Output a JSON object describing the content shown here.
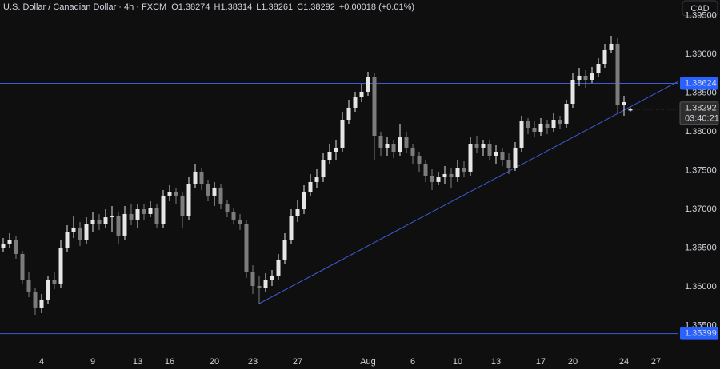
{
  "chart_data": {
    "type": "candlestick",
    "title": "U.S. Dollar / Canadian Dollar · 4h · FXCM",
    "ohlc_legend": [
      {
        "label": "O",
        "value": "1.38274"
      },
      {
        "label": "H",
        "value": "1.38314"
      },
      {
        "label": "L",
        "value": "1.38261"
      },
      {
        "label": "C",
        "value": "1.38292"
      }
    ],
    "change": "+0.00018 (+0.01%)",
    "currency": "CAD",
    "up_color": "#e6e6e6",
    "down_color": "#7c7c7c",
    "line_color": "#3d5bd6",
    "label_color": "#2962ff",
    "ylim": [
      1.35168,
      1.397
    ],
    "yticks": [
      {
        "value": 1.395,
        "label": "1.39500"
      },
      {
        "value": 1.39,
        "label": "1.39000"
      },
      {
        "value": 1.385,
        "label": "1.38500"
      },
      {
        "value": 1.38,
        "label": "1.38000"
      },
      {
        "value": 1.375,
        "label": "1.37500"
      },
      {
        "value": 1.37,
        "label": "1.37000"
      },
      {
        "value": 1.365,
        "label": "1.36500"
      },
      {
        "value": 1.36,
        "label": "1.36000"
      },
      {
        "value": 1.355,
        "label": "1.35500"
      }
    ],
    "price_lines": [
      {
        "value": 1.38624,
        "label": "1.38624"
      },
      {
        "value": 1.35399,
        "label": "1.35399"
      }
    ],
    "last_price": {
      "value": 1.38292,
      "label": "1.38292"
    },
    "countdown": "03:40:21",
    "trendline": [
      [
        40,
        1.35786
      ],
      [
        96,
        1.38235
      ]
    ],
    "categories": [
      null,
      null,
      null,
      null,
      null,
      null,
      "4",
      null,
      null,
      null,
      null,
      null,
      null,
      null,
      "9",
      null,
      null,
      null,
      null,
      null,
      null,
      "13",
      null,
      null,
      null,
      null,
      "16",
      null,
      null,
      null,
      null,
      null,
      null,
      "20",
      null,
      null,
      null,
      null,
      null,
      "23",
      null,
      null,
      null,
      null,
      null,
      null,
      "27",
      null,
      null,
      null,
      null,
      null,
      null,
      null,
      null,
      null,
      null,
      "Aug",
      null,
      null,
      null,
      null,
      null,
      null,
      "6",
      null,
      null,
      null,
      null,
      null,
      null,
      "10",
      null,
      null,
      null,
      null,
      null,
      "13",
      null,
      null,
      null,
      null,
      null,
      null,
      "17",
      null,
      null,
      null,
      null,
      "20",
      null,
      null,
      null,
      null,
      null,
      null,
      null,
      "24",
      null,
      null,
      null,
      null,
      "27"
    ],
    "ohlc": [
      [
        1.36507,
        1.36631,
        1.36445,
        1.36559
      ],
      [
        1.36559,
        1.36692,
        1.36507,
        1.3661
      ],
      [
        1.3661,
        1.36651,
        1.36363,
        1.36425
      ],
      [
        1.36425,
        1.36466,
        1.36033,
        1.36095
      ],
      [
        1.36095,
        1.36198,
        1.35868,
        1.35941
      ],
      [
        1.35941,
        1.35992,
        1.35632,
        1.35735
      ],
      [
        1.35735,
        1.3591,
        1.35662,
        1.35838
      ],
      [
        1.35838,
        1.36147,
        1.35786,
        1.36095
      ],
      [
        1.36095,
        1.36198,
        1.35971,
        1.36044
      ],
      [
        1.36044,
        1.3661,
        1.35992,
        1.36507
      ],
      [
        1.36507,
        1.36795,
        1.36445,
        1.36713
      ],
      [
        1.36713,
        1.36919,
        1.36631,
        1.36765
      ],
      [
        1.36765,
        1.36837,
        1.36528,
        1.3661
      ],
      [
        1.3661,
        1.36898,
        1.36559,
        1.36816
      ],
      [
        1.36816,
        1.36971,
        1.36713,
        1.36868
      ],
      [
        1.36868,
        1.3694,
        1.36734,
        1.36816
      ],
      [
        1.36816,
        1.37001,
        1.36765,
        1.36898
      ],
      [
        1.36898,
        1.37043,
        1.36713,
        1.36919
      ],
      [
        1.36919,
        1.36971,
        1.36559,
        1.36662
      ],
      [
        1.36662,
        1.37043,
        1.3661,
        1.3694
      ],
      [
        1.3694,
        1.37074,
        1.36795,
        1.36868
      ],
      [
        1.36868,
        1.37074,
        1.36765,
        1.37001
      ],
      [
        1.37001,
        1.37063,
        1.36868,
        1.3694
      ],
      [
        1.3694,
        1.37104,
        1.36898,
        1.37022
      ],
      [
        1.37022,
        1.37074,
        1.36765,
        1.36816
      ],
      [
        1.36816,
        1.37249,
        1.36765,
        1.37177
      ],
      [
        1.37177,
        1.3731,
        1.37104,
        1.37228
      ],
      [
        1.37228,
        1.3728,
        1.37074,
        1.37177
      ],
      [
        1.37177,
        1.37228,
        1.36765,
        1.36919
      ],
      [
        1.36919,
        1.37413,
        1.36868,
        1.37331
      ],
      [
        1.37331,
        1.37589,
        1.3728,
        1.37486
      ],
      [
        1.37486,
        1.37537,
        1.37249,
        1.37331
      ],
      [
        1.37331,
        1.37383,
        1.37104,
        1.37177
      ],
      [
        1.37177,
        1.37352,
        1.37043,
        1.3728
      ],
      [
        1.3728,
        1.37331,
        1.37001,
        1.37074
      ],
      [
        1.37074,
        1.37125,
        1.36898,
        1.36971
      ],
      [
        1.36971,
        1.37022,
        1.36816,
        1.36868
      ],
      [
        1.36868,
        1.3694,
        1.36734,
        1.36816
      ],
      [
        1.36816,
        1.36868,
        1.36116,
        1.36198
      ],
      [
        1.36198,
        1.3628,
        1.3591,
        1.36013
      ],
      [
        1.36013,
        1.36147,
        1.35786,
        1.35992
      ],
      [
        1.35992,
        1.36177,
        1.3593,
        1.36095
      ],
      [
        1.36095,
        1.36219,
        1.36013,
        1.36147
      ],
      [
        1.36147,
        1.36425,
        1.36095,
        1.36353
      ],
      [
        1.36353,
        1.36692,
        1.36301,
        1.3661
      ],
      [
        1.3661,
        1.37001,
        1.36559,
        1.36919
      ],
      [
        1.36919,
        1.37125,
        1.36837,
        1.37001
      ],
      [
        1.37001,
        1.3731,
        1.3694,
        1.37228
      ],
      [
        1.37228,
        1.37455,
        1.37177,
        1.37352
      ],
      [
        1.37352,
        1.37516,
        1.3728,
        1.37413
      ],
      [
        1.37413,
        1.37722,
        1.37352,
        1.3764
      ],
      [
        1.3764,
        1.37846,
        1.37589,
        1.37743
      ],
      [
        1.37743,
        1.37898,
        1.3764,
        1.37795
      ],
      [
        1.37795,
        1.38258,
        1.37743,
        1.38155
      ],
      [
        1.38155,
        1.38413,
        1.38104,
        1.3831
      ],
      [
        1.3831,
        1.38516,
        1.38258,
        1.38443
      ],
      [
        1.38443,
        1.38619,
        1.38382,
        1.38516
      ],
      [
        1.38516,
        1.38773,
        1.38464,
        1.38711
      ],
      [
        1.38711,
        1.38752,
        1.3764,
        1.37949
      ],
      [
        1.37949,
        1.38001,
        1.37692,
        1.37795
      ],
      [
        1.37795,
        1.37928,
        1.37692,
        1.37846
      ],
      [
        1.37846,
        1.37898,
        1.37661,
        1.37743
      ],
      [
        1.37743,
        1.38104,
        1.37692,
        1.37928
      ],
      [
        1.37928,
        1.38001,
        1.37722,
        1.37795
      ],
      [
        1.37795,
        1.37846,
        1.37589,
        1.37692
      ],
      [
        1.37692,
        1.37743,
        1.37486,
        1.37589
      ],
      [
        1.37589,
        1.3764,
        1.37352,
        1.37434
      ],
      [
        1.37434,
        1.37516,
        1.37249,
        1.37352
      ],
      [
        1.37352,
        1.37486,
        1.3731,
        1.37413
      ],
      [
        1.37413,
        1.37558,
        1.37331,
        1.37455
      ],
      [
        1.37455,
        1.37537,
        1.3728,
        1.37413
      ],
      [
        1.37413,
        1.3764,
        1.37352,
        1.37537
      ],
      [
        1.37537,
        1.37619,
        1.37413,
        1.37486
      ],
      [
        1.37486,
        1.37928,
        1.37434,
        1.37846
      ],
      [
        1.37846,
        1.37949,
        1.37722,
        1.37795
      ],
      [
        1.37795,
        1.37898,
        1.37692,
        1.37846
      ],
      [
        1.37846,
        1.37898,
        1.3764,
        1.37692
      ],
      [
        1.37692,
        1.37825,
        1.37589,
        1.37743
      ],
      [
        1.37743,
        1.37795,
        1.37558,
        1.3764
      ],
      [
        1.3764,
        1.37722,
        1.37455,
        1.37537
      ],
      [
        1.37537,
        1.37867,
        1.37496,
        1.37795
      ],
      [
        1.37795,
        1.38207,
        1.37743,
        1.38134
      ],
      [
        1.38134,
        1.38176,
        1.3797,
        1.38052
      ],
      [
        1.38052,
        1.38134,
        1.37928,
        1.38001
      ],
      [
        1.38001,
        1.38176,
        1.37949,
        1.38104
      ],
      [
        1.38104,
        1.38155,
        1.3797,
        1.38052
      ],
      [
        1.38052,
        1.38237,
        1.38001,
        1.38155
      ],
      [
        1.38155,
        1.38207,
        1.38031,
        1.38104
      ],
      [
        1.38104,
        1.38413,
        1.38052,
        1.38361
      ],
      [
        1.38361,
        1.38752,
        1.3831,
        1.3867
      ],
      [
        1.3867,
        1.38825,
        1.38588,
        1.38722
      ],
      [
        1.38722,
        1.38794,
        1.38567,
        1.3867
      ],
      [
        1.3867,
        1.38835,
        1.38629,
        1.38752
      ],
      [
        1.38752,
        1.38958,
        1.38711,
        1.38876
      ],
      [
        1.38876,
        1.39134,
        1.38825,
        1.39061
      ],
      [
        1.39061,
        1.39237,
        1.3902,
        1.39134
      ],
      [
        1.39134,
        1.39206,
        1.38237,
        1.3834
      ],
      [
        1.3834,
        1.38464,
        1.38207,
        1.38382
      ],
      [
        1.38274,
        1.38314,
        1.38261,
        1.38292
      ],
      null,
      null,
      null,
      null
    ]
  }
}
